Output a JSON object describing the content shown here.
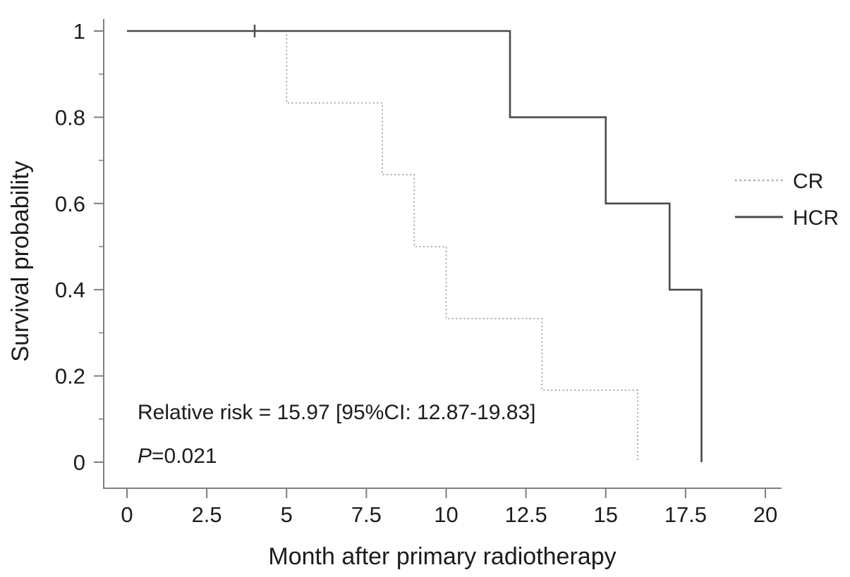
{
  "chart_data": {
    "type": "line",
    "subtype": "kaplan-meier-step-curve",
    "title": "",
    "xlabel": "Month after primary radiotherapy",
    "ylabel": "Survival probability",
    "xlim": [
      0,
      20
    ],
    "ylim": [
      0,
      1
    ],
    "grid": false,
    "x_tick_labels": [
      "0",
      "2.5",
      "5",
      "7.5",
      "10",
      "12.5",
      "15",
      "17.5",
      "20"
    ],
    "y_tick_labels": [
      "1",
      "0.8",
      "0.6",
      "0.4",
      "0.2",
      "0"
    ],
    "y_minor_ticks": [
      0.9,
      0.7,
      0.5,
      0.3,
      0.1
    ],
    "legend_position": "right-middle",
    "series": [
      {
        "name": "CR",
        "line_style": "dotted",
        "color": "#a2a2a2",
        "step_x": [
          0,
          5,
          8,
          9,
          10,
          13,
          16
        ],
        "step_y": [
          1,
          0.833,
          0.667,
          0.5,
          0.333,
          0.167,
          0
        ],
        "censor_x": [
          4
        ],
        "censor_y": [
          1
        ]
      },
      {
        "name": "HCR",
        "line_style": "solid",
        "color": "#4a4a4a",
        "step_x": [
          0,
          12,
          15,
          17,
          18
        ],
        "step_y": [
          1,
          0.8,
          0.6,
          0.4,
          0
        ],
        "censor_x": [],
        "censor_y": []
      }
    ],
    "annotations": {
      "relative_risk": "Relative risk = 15.97 [95%CI: 12.87-19.83]",
      "p_italic": "P",
      "p_rest": "=0.021"
    },
    "colors": {
      "axis": "#7f7f7f",
      "text": "#1c1c1c",
      "censor_mark": "#4f4f4f",
      "background": "#ffffff"
    }
  }
}
